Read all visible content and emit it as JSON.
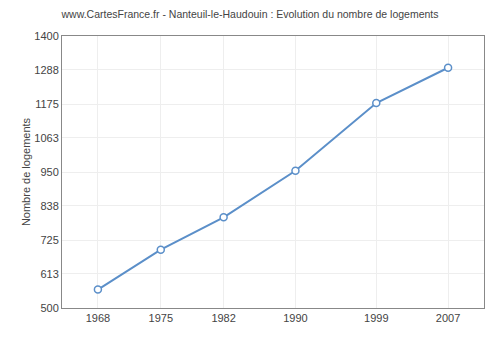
{
  "chart_data": {
    "type": "line",
    "title": "www.CartesFrance.fr - Nanteuil-le-Haudouin : Evolution du nombre de logements",
    "x": [
      1968,
      1975,
      1982,
      1990,
      1999,
      2007
    ],
    "values": [
      561,
      693,
      800,
      954,
      1178,
      1295
    ],
    "ylabel": "Nombre de logements",
    "xlim": [
      1964,
      2011
    ],
    "xticks": [
      1968,
      1975,
      1982,
      1990,
      1999,
      2007
    ],
    "ylim": [
      500,
      1400
    ],
    "yticks": [
      500,
      613,
      725,
      838,
      950,
      1063,
      1175,
      1288,
      1400
    ],
    "grid": true,
    "color": "#5b8fc9",
    "marker": "circle"
  }
}
